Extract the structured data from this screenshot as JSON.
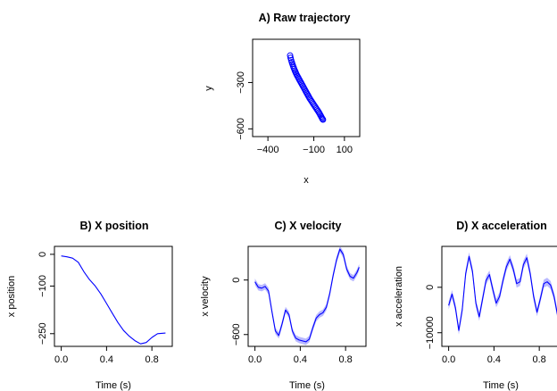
{
  "chart_data": [
    {
      "id": "A",
      "type": "scatter",
      "title": "A) Raw trajectory",
      "xlabel": "x",
      "ylabel": "y",
      "xlim": [
        -500,
        200
      ],
      "ylim": [
        -650,
        -20
      ],
      "xticks": [
        {
          "v": -400,
          "label": "−400"
        },
        {
          "v": -100,
          "label": "−100"
        },
        {
          "v": 100,
          "label": "100"
        }
      ],
      "yticks": [
        {
          "v": -300,
          "label": "−300"
        },
        {
          "v": -600,
          "label": "−600"
        }
      ],
      "color": "#0000ff",
      "x": [
        -255,
        -252,
        -248,
        -244,
        -240,
        -236,
        -232,
        -228,
        -224,
        -220,
        -216,
        -212,
        -207,
        -202,
        -197,
        -192,
        -187,
        -182,
        -177,
        -172,
        -167,
        -162,
        -157,
        -152,
        -147,
        -142,
        -137,
        -132,
        -127,
        -121,
        -115,
        -109,
        -103,
        -97,
        -91,
        -85,
        -79,
        -73,
        -67,
        -62,
        -57,
        -52,
        -48,
        -44,
        -40
      ],
      "y": [
        -125,
        -140,
        -155,
        -168,
        -180,
        -192,
        -203,
        -213,
        -223,
        -232,
        -241,
        -250,
        -259,
        -268,
        -277,
        -286,
        -295,
        -304,
        -313,
        -322,
        -331,
        -340,
        -349,
        -358,
        -367,
        -376,
        -385,
        -394,
        -403,
        -412,
        -421,
        -430,
        -439,
        -448,
        -457,
        -466,
        -475,
        -484,
        -493,
        -502,
        -511,
        -520,
        -528,
        -535,
        -540
      ]
    },
    {
      "id": "B",
      "type": "line",
      "title": "B) X position",
      "xlabel": "Time (s)",
      "ylabel": "x position",
      "xlim": [
        -0.06,
        0.98
      ],
      "ylim": [
        -290,
        25
      ],
      "xticks": [
        {
          "v": 0,
          "label": "0.0"
        },
        {
          "v": 0.4,
          "label": "0.4"
        },
        {
          "v": 0.8,
          "label": "0.8"
        }
      ],
      "yticks": [
        {
          "v": 0,
          "label": "0"
        },
        {
          "v": -100,
          "label": "−100"
        },
        {
          "v": -250,
          "label": "−250"
        }
      ],
      "color": "#0000ff",
      "x": [
        0,
        0.05,
        0.1,
        0.15,
        0.2,
        0.25,
        0.3,
        0.35,
        0.4,
        0.45,
        0.5,
        0.55,
        0.6,
        0.65,
        0.7,
        0.75,
        0.8,
        0.85,
        0.92
      ],
      "y": [
        -5,
        -8,
        -12,
        -25,
        -55,
        -80,
        -100,
        -125,
        -155,
        -185,
        -215,
        -240,
        -258,
        -272,
        -282,
        -278,
        -262,
        -250,
        -248
      ]
    },
    {
      "id": "C",
      "type": "line",
      "title": "C) X velocity",
      "xlabel": "Time (s)",
      "ylabel": "x velocity",
      "xlim": [
        -0.06,
        0.98
      ],
      "ylim": [
        -730,
        370
      ],
      "xticks": [
        {
          "v": 0,
          "label": "0.0"
        },
        {
          "v": 0.4,
          "label": "0.4"
        },
        {
          "v": 0.8,
          "label": "0.8"
        }
      ],
      "yticks": [
        {
          "v": 0,
          "label": "0"
        },
        {
          "v": -600,
          "label": "−600"
        }
      ],
      "color": "#0000ff",
      "band": 35,
      "x": [
        0,
        0.03,
        0.06,
        0.09,
        0.12,
        0.15,
        0.18,
        0.21,
        0.24,
        0.27,
        0.3,
        0.33,
        0.36,
        0.39,
        0.42,
        0.45,
        0.48,
        0.51,
        0.54,
        0.57,
        0.6,
        0.63,
        0.66,
        0.69,
        0.72,
        0.75,
        0.78,
        0.81,
        0.84,
        0.87,
        0.9,
        0.92
      ],
      "y": [
        -20,
        -80,
        -90,
        -70,
        -120,
        -350,
        -560,
        -610,
        -480,
        -330,
        -380,
        -560,
        -640,
        -660,
        -670,
        -680,
        -650,
        -530,
        -420,
        -380,
        -360,
        -300,
        -150,
        50,
        220,
        340,
        280,
        120,
        40,
        20,
        80,
        140
      ]
    },
    {
      "id": "D",
      "type": "line",
      "title": "D) X acceleration",
      "xlabel": "Time (s)",
      "ylabel": "x acceleration",
      "xlim": [
        -0.06,
        0.98
      ],
      "ylim": [
        -13000,
        9000
      ],
      "xticks": [
        {
          "v": 0,
          "label": "0.0"
        },
        {
          "v": 0.4,
          "label": "0.4"
        },
        {
          "v": 0.8,
          "label": "0.8"
        }
      ],
      "yticks": [
        {
          "v": 0,
          "label": "0"
        },
        {
          "v": -10000,
          "label": "−10000"
        }
      ],
      "color": "#0000ff",
      "band": 900,
      "x": [
        0,
        0.03,
        0.06,
        0.09,
        0.12,
        0.15,
        0.18,
        0.21,
        0.24,
        0.27,
        0.3,
        0.33,
        0.36,
        0.39,
        0.42,
        0.45,
        0.48,
        0.51,
        0.54,
        0.57,
        0.6,
        0.63,
        0.66,
        0.69,
        0.72,
        0.75,
        0.78,
        0.81,
        0.84,
        0.87,
        0.9,
        0.93,
        0.96
      ],
      "y": [
        -4000,
        -1500,
        -4500,
        -9500,
        -5000,
        3000,
        6800,
        3500,
        -3500,
        -6500,
        -2500,
        1500,
        2800,
        -500,
        -3500,
        -2000,
        1500,
        4500,
        6200,
        4000,
        800,
        1200,
        5000,
        6500,
        3000,
        -2000,
        -5500,
        -2500,
        800,
        1200,
        500,
        -2000,
        -6000
      ]
    }
  ]
}
